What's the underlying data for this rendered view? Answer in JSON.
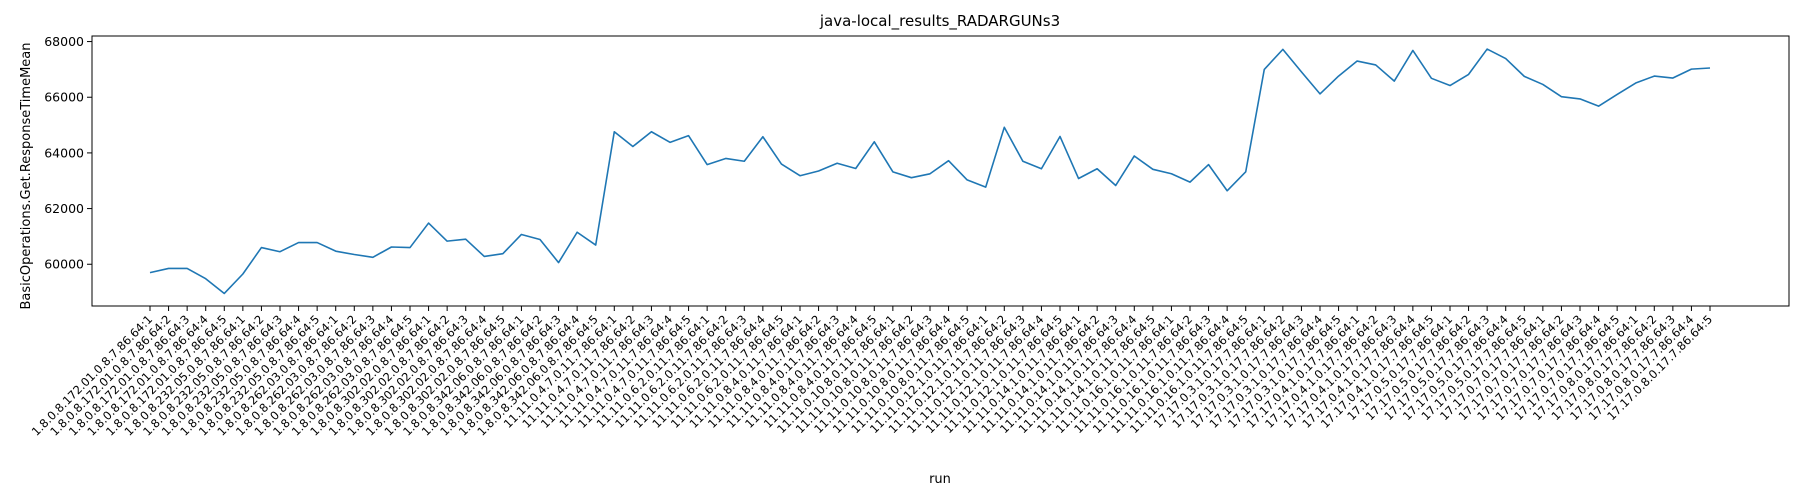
{
  "chart_data": {
    "type": "line",
    "title": "java-local_results_RADARGUNs3",
    "xlabel": "run",
    "ylabel": "BasicOperations.Get.ResponseTimeMean",
    "ylim": [
      58500,
      68200
    ],
    "yticks": [
      60000,
      62000,
      64000,
      66000,
      68000
    ],
    "ytick_labels": [
      "60000",
      "62000",
      "64000",
      "66000",
      "68000"
    ],
    "grid": false,
    "x": [
      "1.8.0.8.172.01.0.8.7.86.64:1",
      "1.8.0.8.172.01.0.8.7.86.64:2",
      "1.8.0.8.172.01.0.8.7.86.64:3",
      "1.8.0.8.172.01.0.8.7.86.64:4",
      "1.8.0.8.172.01.0.8.7.86.64:5",
      "1.8.0.8.232.05.0.8.7.86.64:1",
      "1.8.0.8.232.05.0.8.7.86.64:2",
      "1.8.0.8.232.05.0.8.7.86.64:3",
      "1.8.0.8.232.05.0.8.7.86.64:4",
      "1.8.0.8.232.05.0.8.7.86.64:5",
      "1.8.0.8.262.03.0.8.7.86.64:1",
      "1.8.0.8.262.03.0.8.7.86.64:2",
      "1.8.0.8.262.03.0.8.7.86.64:3",
      "1.8.0.8.262.03.0.8.7.86.64:4",
      "1.8.0.8.262.03.0.8.7.86.64:5",
      "1.8.0.8.302.02.0.8.7.86.64:1",
      "1.8.0.8.302.02.0.8.7.86.64:2",
      "1.8.0.8.302.02.0.8.7.86.64:3",
      "1.8.0.8.302.02.0.8.7.86.64:4",
      "1.8.0.8.302.02.0.8.7.86.64:5",
      "1.8.0.8.342.06.0.8.7.86.64:1",
      "1.8.0.8.342.06.0.8.7.86.64:2",
      "1.8.0.8.342.06.0.8.7.86.64:3",
      "1.8.0.8.342.06.0.8.7.86.64:4",
      "1.8.0.8.342.06.0.8.7.86.64:5",
      "11.11.0.4.7.0.11.7.86.64:1",
      "11.11.0.4.7.0.11.7.86.64:2",
      "11.11.0.4.7.0.11.7.86.64:3",
      "11.11.0.4.7.0.11.7.86.64:4",
      "11.11.0.4.7.0.11.7.86.64:5",
      "11.11.0.6.2.0.11.7.86.64:1",
      "11.11.0.6.2.0.11.7.86.64:2",
      "11.11.0.6.2.0.11.7.86.64:3",
      "11.11.0.6.2.0.11.7.86.64:4",
      "11.11.0.6.2.0.11.7.86.64:5",
      "11.11.0.8.4.0.11.7.86.64:1",
      "11.11.0.8.4.0.11.7.86.64:2",
      "11.11.0.8.4.0.11.7.86.64:3",
      "11.11.0.8.4.0.11.7.86.64:4",
      "11.11.0.8.4.0.11.7.86.64:5",
      "11.11.0.10.8.0.11.7.86.64:1",
      "11.11.0.10.8.0.11.7.86.64:2",
      "11.11.0.10.8.0.11.7.86.64:3",
      "11.11.0.10.8.0.11.7.86.64:4",
      "11.11.0.10.8.0.11.7.86.64:5",
      "11.11.0.12.1.0.11.7.86.64:1",
      "11.11.0.12.1.0.11.7.86.64:2",
      "11.11.0.12.1.0.11.7.86.64:3",
      "11.11.0.12.1.0.11.7.86.64:4",
      "11.11.0.12.1.0.11.7.86.64:5",
      "11.11.0.14.1.0.11.7.86.64:1",
      "11.11.0.14.1.0.11.7.86.64:2",
      "11.11.0.14.1.0.11.7.86.64:3",
      "11.11.0.14.1.0.11.7.86.64:4",
      "11.11.0.14.1.0.11.7.86.64:5",
      "11.11.0.16.1.0.11.7.86.64:1",
      "11.11.0.16.1.0.11.7.86.64:2",
      "11.11.0.16.1.0.11.7.86.64:3",
      "11.11.0.16.1.0.11.7.86.64:4",
      "11.11.0.16.1.0.11.7.86.64:5",
      "17.17.0.3.1.0.17.7.86.64:1",
      "17.17.0.3.1.0.17.7.86.64:2",
      "17.17.0.3.1.0.17.7.86.64:3",
      "17.17.0.3.1.0.17.7.86.64:4",
      "17.17.0.3.1.0.17.7.86.64:5",
      "17.17.0.4.1.0.17.7.86.64:1",
      "17.17.0.4.1.0.17.7.86.64:2",
      "17.17.0.4.1.0.17.7.86.64:3",
      "17.17.0.4.1.0.17.7.86.64:4",
      "17.17.0.4.1.0.17.7.86.64:5",
      "17.17.0.5.0.17.7.86.64:1",
      "17.17.0.5.0.17.7.86.64:2",
      "17.17.0.5.0.17.7.86.64:3",
      "17.17.0.5.0.17.7.86.64:4",
      "17.17.0.5.0.17.7.86.64:5",
      "17.17.0.7.0.17.7.86.64:1",
      "17.17.0.7.0.17.7.86.64:2",
      "17.17.0.7.0.17.7.86.64:3",
      "17.17.0.7.0.17.7.86.64:4",
      "17.17.0.7.0.17.7.86.64:5",
      "17.17.0.8.0.17.7.86.64:1",
      "17.17.0.8.0.17.7.86.64:2",
      "17.17.0.8.0.17.7.86.64:3",
      "17.17.0.8.0.17.7.86.64:4",
      "17.17.0.8.0.17.7.86.64:5"
    ],
    "series": [
      {
        "color": "#1f77b4",
        "values": [
          59700,
          59850,
          59850,
          59480,
          58950,
          59650,
          60600,
          60450,
          60780,
          60780,
          60470,
          60350,
          60250,
          60620,
          60600,
          61480,
          60830,
          60900,
          60280,
          60380,
          61070,
          60890,
          60060,
          61150,
          60690,
          64760,
          64230,
          64760,
          64380,
          64620,
          63580,
          63800,
          63700,
          64580,
          63600,
          63180,
          63350,
          63630,
          63440,
          64400,
          63320,
          63110,
          63250,
          63720,
          63030,
          62770,
          64920,
          63700,
          63430,
          64590,
          63080,
          63430,
          62830,
          63890,
          63410,
          63250,
          62950,
          63580,
          62640,
          63320,
          67000,
          67720,
          66910,
          66120,
          66760,
          67300,
          67160,
          66580,
          67680,
          66680,
          66420,
          66820,
          67730,
          67390,
          66750,
          66460,
          66020,
          65940,
          65680,
          66100,
          66510,
          66760,
          66690,
          67010,
          67050
        ]
      }
    ]
  }
}
